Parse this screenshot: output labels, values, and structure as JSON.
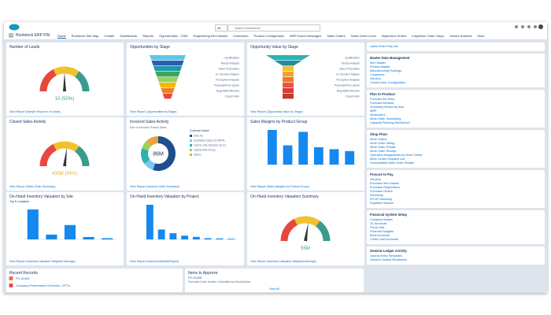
{
  "header": {
    "scope": "All",
    "search": "Search Salesforce",
    "app_name": "Rootstock ERP FIN",
    "tabs": [
      "Home",
      "Rootstock Site Map",
      "Chatter",
      "Dashboards",
      "Reports",
      "Opportunities - CRM",
      "Engineering Item Master",
      "Customers",
      "Product Configuration",
      "MRP Action Messages",
      "Sales Orders",
      "Sales Order Lines",
      "Inspection Orders",
      "Inspection Order Steps",
      "Vendor Address",
      "More"
    ]
  },
  "widgets": [
    {
      "title": "Number of Leads",
      "type": "gauge",
      "value": 50,
      "value_label": "10 (50%)",
      "label_color": "#3a9c8c",
      "footer": "View Report (Sample Report # of Leads)"
    },
    {
      "title": "Opportunities by Stage",
      "type": "funnel",
      "stages": [
        "Qualification",
        "Needs Analysis",
        "Value Proposition",
        "Id. Decision Makers",
        "Perception Analysis",
        "Proposal/Price Quote",
        "Negotiation/Review",
        "Closed Won"
      ],
      "colors": [
        "#5ac8e8",
        "#2a5db0",
        "#1b9aaa",
        "#3aa55d",
        "#9ad35a",
        "#f5b700",
        "#ef7e27",
        "#e8473f"
      ],
      "footer": "View Report (Opportunities by Stage)"
    },
    {
      "title": "Opportunity Value by Stage",
      "type": "funnel",
      "stages": [
        "Qualification",
        "Needs Analysis",
        "Value Proposition",
        "Id. Decision Makers",
        "Perception Analysis",
        "Proposal/Price Quote",
        "Negotiation/Review",
        "Closed Won"
      ],
      "colors": [
        "#2bb3b0",
        "#1b8fa0",
        "#f2c12e",
        "#f2a22e",
        "#ee7c2c",
        "#e8563f",
        "#d83b3b",
        "#c0392b"
      ],
      "footer": "View Report (Opportunity Value by Stage)"
    },
    {
      "title": "Closed Sales Activity",
      "type": "gauge",
      "value": 54,
      "value_label": "435M (54%)",
      "label_color": "#e0b040",
      "footer": "View Report (Sales Order Summary)"
    },
    {
      "title": "Invoiced Sales Activity",
      "type": "donut",
      "measure": "Sum of Invoiced Product Sales",
      "center_label": "86M",
      "legend_title": "Customer Name",
      "names": [
        "Sofa Inc",
        "Synthetics Depot (CORPA)",
        "Carbon City Solutions (U.S.)",
        "Capital Elite Group",
        "Others"
      ],
      "values": [
        55,
        10,
        15,
        8,
        12
      ],
      "colors": [
        "#1f4e8c",
        "#7bc8ef",
        "#2bb3b0",
        "#9ad35a",
        "#e8a33e"
      ],
      "footer": "View Report (Invoiced Order Summary)"
    },
    {
      "title": "Sales Margins by Product Group",
      "type": "bars",
      "values": [
        9,
        5,
        8.5,
        4.5,
        4,
        3.5
      ],
      "color": "#1589ee",
      "footer": "View Report (Sales Margins by Product Group)"
    },
    {
      "title": "On-Hand Inventory Valuation by Site",
      "subtitle": "Top 5 Locations",
      "type": "bars",
      "values": [
        2.5,
        0.4,
        1.2,
        0.2,
        0.1
      ],
      "color": "#1589ee",
      "footer": "View Report (Inventory Valuation Weighted Average)"
    },
    {
      "title": "On-Hand Inventory Valuation by Project",
      "type": "bars",
      "values": [
        2.8,
        0.8,
        0.5,
        0.3,
        0.2,
        0.1,
        0.08,
        0.05
      ],
      "color": "#1589ee",
      "footer": "View Report (InventoryValueByProject)"
    },
    {
      "title": "On-Hand Inventory Valuation Summary",
      "type": "gauge",
      "value": 55,
      "value_label": "55M",
      "label_color": "#3a9c8c",
      "footer": "View Report (Inventory Valuation Weighted Average)"
    }
  ],
  "recent": {
    "title": "Recent Records",
    "items": [
      "PO-01408",
      "Company Performance Overview - EFT's"
    ]
  },
  "approve": {
    "title": "Items to Approve",
    "item": "PO-01408",
    "detail": "Purchase Order Header • Submitted by David Burton",
    "view_all": "View All"
  },
  "sidebar": {
    "top_link": "Sales Order Pick List",
    "sections": [
      {
        "title": "Master Data Management",
        "links": [
          "Item Master",
          "Product Master",
          "Manufacturing Routings",
          "Customers",
          "Vendors",
          "Current User Configuration"
        ]
      },
      {
        "title": "Plan to Produce",
        "links": [
          "Forecast Set Entry",
          "Forecast Demand",
          "Summary Review by Item",
          "MRP",
          "Workorders",
          "Work Order Scheduling",
          "Capacity Planning Workbench"
        ]
      },
      {
        "title": "Shop Floor",
        "links": [
          "Work Orders",
          "Work Order Kitting",
          "Work Order Picklist",
          "Work Order Receipt",
          "Operation Assignments by Work Center",
          "Work Center Dispatch List",
          "Consolidated Work Order Picklist"
        ]
      },
      {
        "title": "Procure to Pay",
        "links": [
          "Vendors",
          "Purchase Item Master",
          "Purchase Requisitions",
          "Purchase Orders",
          "Receiving",
          "PO AP Matching",
          "Payables Session"
        ]
      },
      {
        "title": "Financial System Setup",
        "links": [
          "Company Master",
          "GL Accounts",
          "Fiscal Year",
          "Financial Budgets",
          "Bank Accounts",
          "Credit Card Accounts"
        ]
      },
      {
        "title": "General Ledger Activity",
        "links": [
          "Journal Entry Templates",
          "General Journal Workbench"
        ]
      }
    ]
  }
}
